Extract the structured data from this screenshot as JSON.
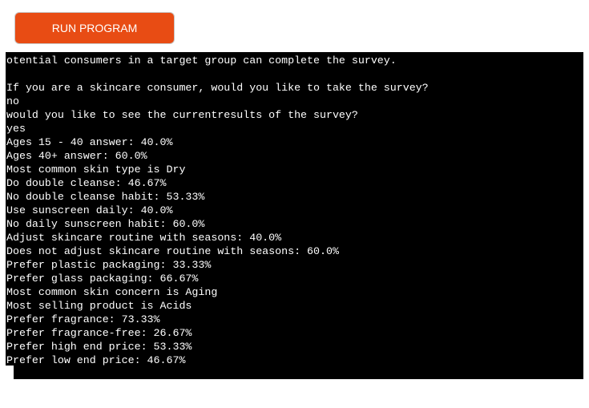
{
  "toolbar": {
    "run_label": "RUN PROGRAM",
    "run_color": "#e84c14"
  },
  "terminal": {
    "background": "#000000",
    "text_color": "#ffffff",
    "lines": [
      "otential consumers in a target group can complete the survey.",
      "",
      "If you are a skincare consumer, would you like to take the survey?",
      "no",
      "would you like to see the currentresults of the survey?",
      "yes",
      "Ages 15 - 40 answer: 40.0%",
      "Ages 40+ answer: 60.0%",
      "Most common skin type is Dry",
      "Do double cleanse: 46.67%",
      "No double cleanse habit: 53.33%",
      "Use sunscreen daily: 40.0%",
      "No daily sunscreen habit: 60.0%",
      "Adjust skincare routine with seasons: 40.0%",
      "Does not adjust skincare routine with seasons: 60.0%",
      "Prefer plastic packaging: 33.33%",
      "Prefer glass packaging: 66.67%",
      "Most common skin concern is Aging",
      "Most selling product is Acids",
      "Prefer fragrance: 73.33%",
      "Prefer fragrance-free: 26.67%",
      "Prefer high end price: 53.33%",
      "Prefer low end price: 46.67%"
    ]
  }
}
